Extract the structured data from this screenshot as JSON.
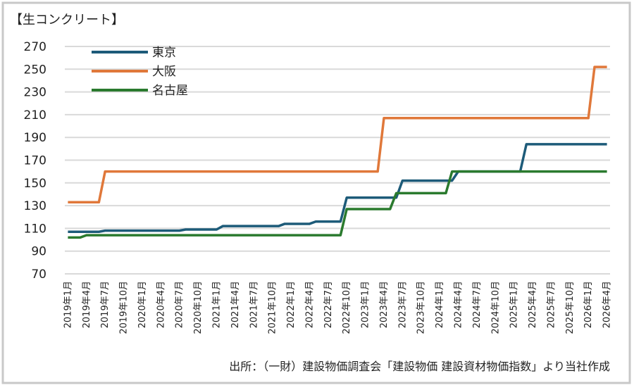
{
  "chart_data": {
    "type": "line",
    "title": "【生コンクリート】",
    "source": "出所：（一財）建設物価調査会「建設物価 建設資材物価指数」より当社作成",
    "categories": [
      "2019年1月",
      null,
      null,
      "2019年4月",
      null,
      null,
      "2019年7月",
      null,
      null,
      "2019年10月",
      null,
      null,
      "2020年1月",
      null,
      null,
      "2020年4月",
      null,
      null,
      "2020年7月",
      null,
      null,
      "2020年10月",
      null,
      null,
      "2021年1月",
      null,
      null,
      "2021年4月",
      null,
      null,
      "2021年7月",
      null,
      null,
      "2021年10月",
      null,
      null,
      "2022年1月",
      null,
      null,
      "2022年4月",
      null,
      null,
      "2022年7月",
      null,
      null,
      "2022年10月",
      null,
      null,
      "2023年1月",
      null,
      null,
      "2023年4月",
      null,
      null,
      "2023年7月",
      null,
      null,
      "2023年10月",
      null,
      null,
      "2024年1月",
      null,
      null,
      "2024年4月",
      null,
      null,
      "2024年7月",
      null,
      null,
      "2024年10月",
      null,
      null,
      "2025年1月",
      null,
      null,
      "2025年4月",
      null,
      null,
      "2025年7月",
      null,
      null,
      "2025年10月",
      null,
      null,
      "2026年1月",
      null,
      null,
      "2026年4月"
    ],
    "series": [
      {
        "name": "東京",
        "color": "#1d5b79",
        "values": [
          107,
          107,
          107,
          107,
          107,
          107,
          108,
          108,
          108,
          108,
          108,
          108,
          108,
          108,
          108,
          108,
          108,
          108,
          108,
          109,
          109,
          109,
          109,
          109,
          109,
          112,
          112,
          112,
          112,
          112,
          112,
          112,
          112,
          112,
          112,
          114,
          114,
          114,
          114,
          114,
          116,
          116,
          116,
          116,
          116,
          137,
          137,
          137,
          137,
          137,
          137,
          137,
          137,
          137,
          152,
          152,
          152,
          152,
          152,
          152,
          152,
          152,
          152,
          160,
          160,
          160,
          160,
          160,
          160,
          160,
          160,
          160,
          160,
          160,
          184,
          184,
          184,
          184,
          184,
          184,
          184,
          184,
          184,
          184,
          184,
          184,
          184,
          184
        ]
      },
      {
        "name": "大阪",
        "color": "#e0783a",
        "values": [
          133,
          133,
          133,
          133,
          133,
          133,
          160,
          160,
          160,
          160,
          160,
          160,
          160,
          160,
          160,
          160,
          160,
          160,
          160,
          160,
          160,
          160,
          160,
          160,
          160,
          160,
          160,
          160,
          160,
          160,
          160,
          160,
          160,
          160,
          160,
          160,
          160,
          160,
          160,
          160,
          160,
          160,
          160,
          160,
          160,
          160,
          160,
          160,
          160,
          160,
          160,
          207,
          207,
          207,
          207,
          207,
          207,
          207,
          207,
          207,
          207,
          207,
          207,
          207,
          207,
          207,
          207,
          207,
          207,
          207,
          207,
          207,
          207,
          207,
          207,
          207,
          207,
          207,
          207,
          207,
          207,
          207,
          207,
          207,
          207,
          252,
          252,
          252
        ]
      },
      {
        "name": "名古屋",
        "color": "#2a7a2e",
        "values": [
          102,
          102,
          102,
          104,
          104,
          104,
          104,
          104,
          104,
          104,
          104,
          104,
          104,
          104,
          104,
          104,
          104,
          104,
          104,
          104,
          104,
          104,
          104,
          104,
          104,
          104,
          104,
          104,
          104,
          104,
          104,
          104,
          104,
          104,
          104,
          104,
          104,
          104,
          104,
          104,
          104,
          104,
          104,
          104,
          104,
          127,
          127,
          127,
          127,
          127,
          127,
          127,
          127,
          141,
          141,
          141,
          141,
          141,
          141,
          141,
          141,
          141,
          160,
          160,
          160,
          160,
          160,
          160,
          160,
          160,
          160,
          160,
          160,
          160,
          160,
          160,
          160,
          160,
          160,
          160,
          160,
          160,
          160,
          160,
          160,
          160,
          160,
          160
        ]
      }
    ],
    "ylim": [
      70,
      270
    ],
    "yticks": [
      70,
      90,
      110,
      130,
      150,
      170,
      190,
      210,
      230,
      250,
      270
    ],
    "grid": true,
    "legend": "upper left"
  }
}
